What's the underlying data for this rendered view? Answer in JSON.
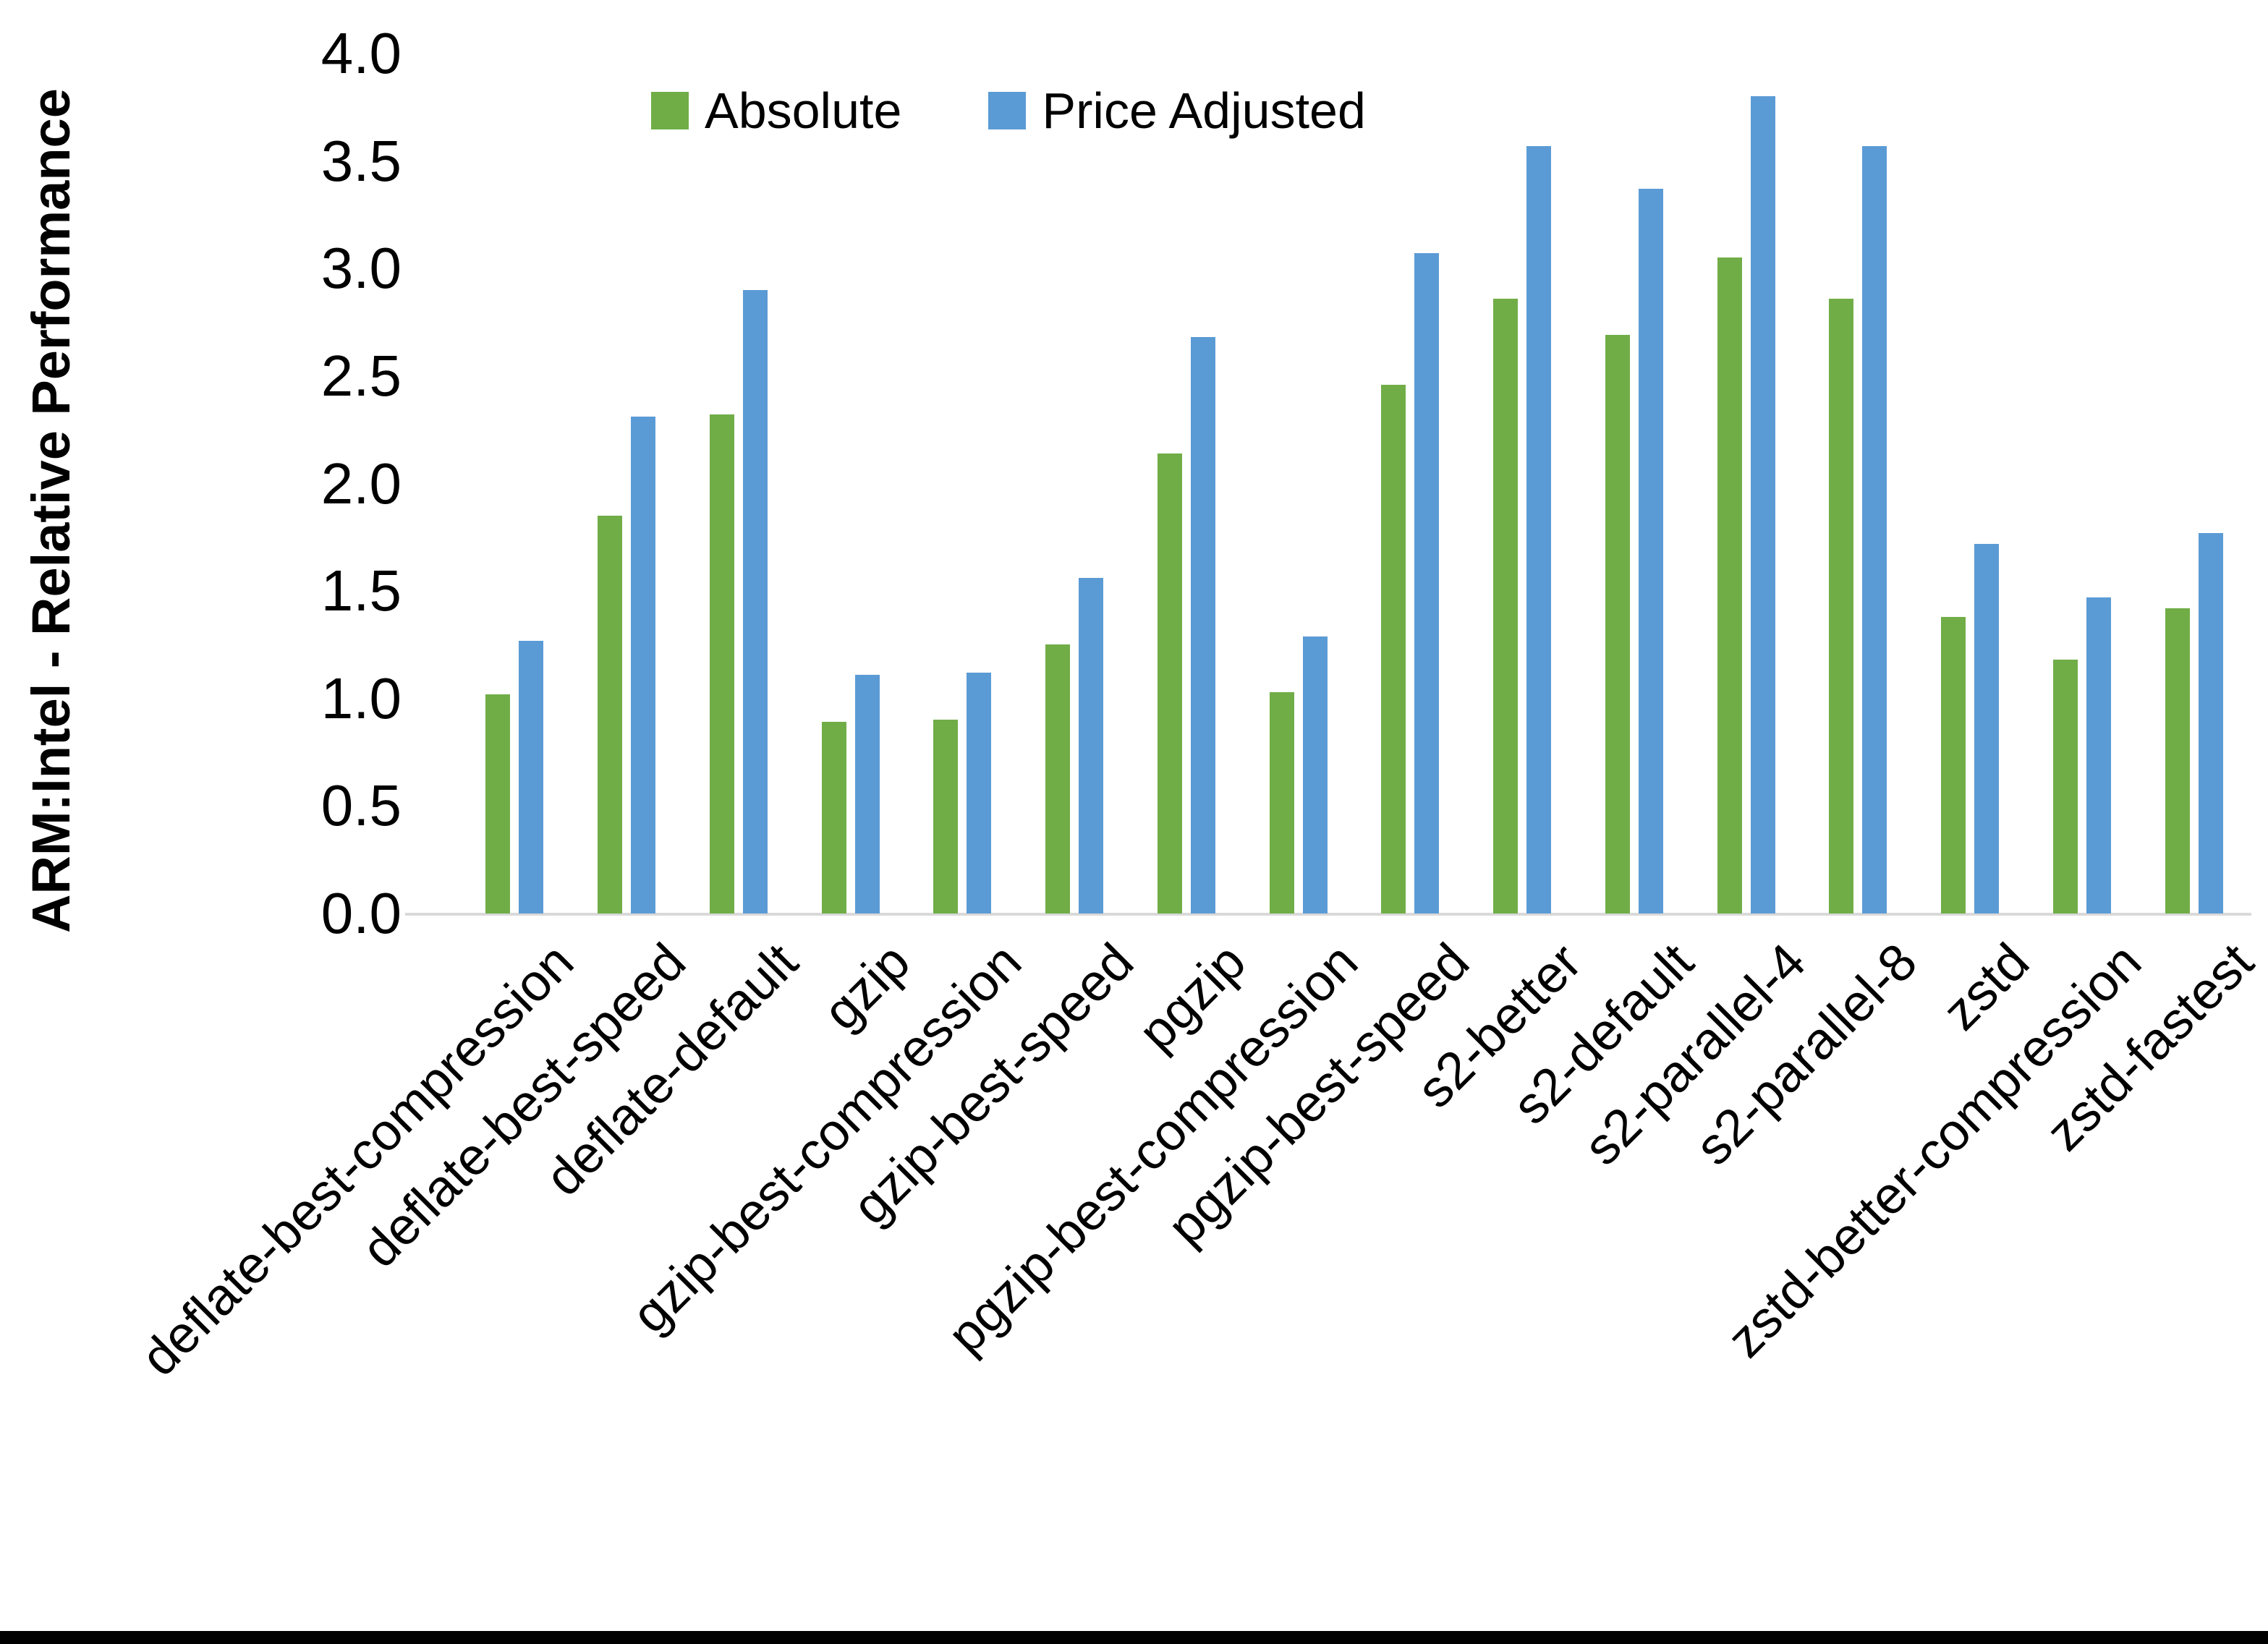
{
  "chart_data": {
    "type": "bar",
    "title": "",
    "xlabel": "",
    "ylabel": "ARM:Intel - Relative Performance",
    "ylim": [
      0.0,
      4.0
    ],
    "ytick_labels": [
      "4.0",
      "3.5",
      "3.0",
      "2.5",
      "2.0",
      "1.5",
      "1.0",
      "0.5",
      "0.0"
    ],
    "grid": "off",
    "legend_position": "top-center",
    "axis_line_color": "#d9d9d9",
    "categories": [
      "deflate-best-compression",
      "deflate-best-speed",
      "deflate-default",
      "gzip",
      "gzip-best-compression",
      "gzip-best-speed",
      "pgzip",
      "pgzip-best-compression",
      "pgzip-best-speed",
      "s2-better",
      "s2-default",
      "s2-parallel-4",
      "s2-parallel-8",
      "zstd",
      "zstd-better-compression",
      "zstd-fastest"
    ],
    "series": [
      {
        "name": "Absolute",
        "color": "#70AD47",
        "values": [
          1.02,
          1.85,
          2.32,
          0.89,
          0.9,
          1.25,
          2.14,
          1.03,
          2.46,
          2.86,
          2.69,
          3.05,
          2.86,
          1.38,
          1.18,
          1.42
        ]
      },
      {
        "name": "Price Adjusted",
        "color": "#5B9BD5",
        "values": [
          1.27,
          2.31,
          2.9,
          1.11,
          1.12,
          1.56,
          2.68,
          1.29,
          3.07,
          3.57,
          3.37,
          3.8,
          3.57,
          1.72,
          1.47,
          1.77
        ]
      }
    ]
  }
}
